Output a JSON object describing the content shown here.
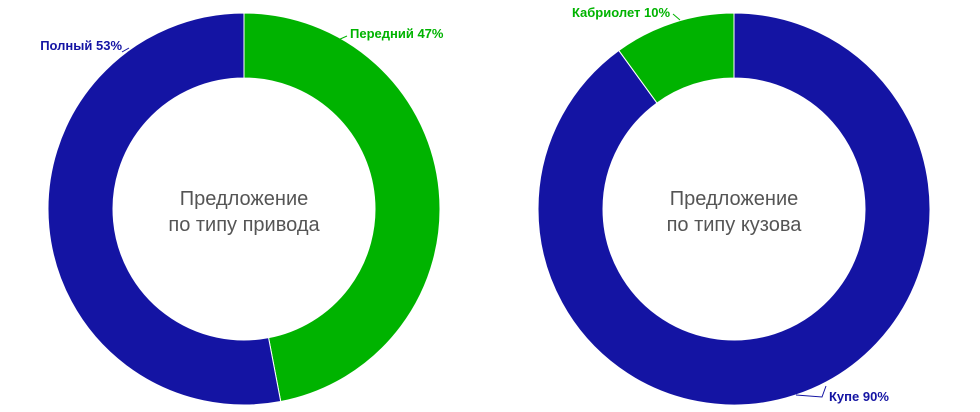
{
  "chart_data": [
    {
      "type": "pie",
      "title_lines": [
        "Предложение",
        "по типу привода"
      ],
      "slices": [
        {
          "label": "Передний 47%",
          "value": 47,
          "color": "#00b300"
        },
        {
          "label": "Полный 53%",
          "value": 53,
          "color": "#1414a3"
        }
      ]
    },
    {
      "type": "pie",
      "title_lines": [
        "Предложение",
        "по типу кузова"
      ],
      "slices": [
        {
          "label": "Купе 90%",
          "value": 90,
          "color": "#1414a3"
        },
        {
          "label": "Кабриолет 10%",
          "value": 10,
          "color": "#00b300"
        }
      ]
    }
  ]
}
